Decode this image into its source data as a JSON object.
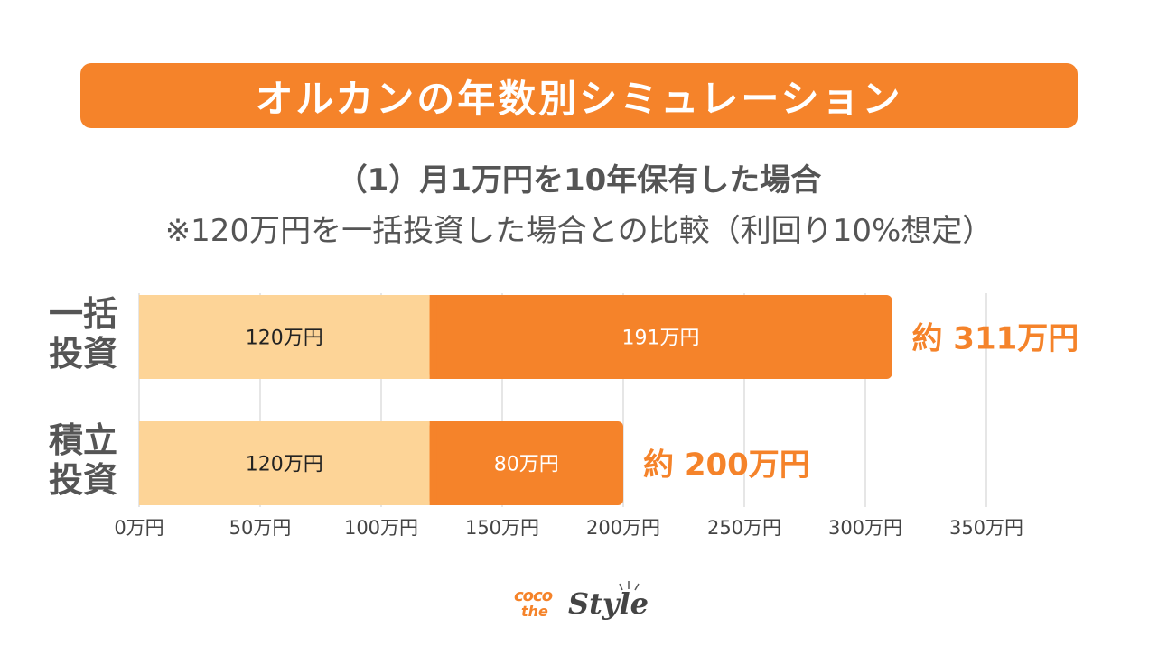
{
  "title": "オルカンの年数別シミュレーション",
  "subtitle": "（1）月1万円を10年保有した場合",
  "note": "※120万円を一括投資した場合との比較（利回り10%想定）",
  "colors": {
    "accent": "#f5832a",
    "principal": "#fdd497",
    "text": "#555555",
    "grid": "#dddddd"
  },
  "logo": {
    "coco": "coco",
    "the": "the",
    "style": "Style"
  },
  "chart_data": {
    "type": "bar",
    "orientation": "horizontal",
    "stacked": true,
    "categories": [
      "一括投資",
      "積立投資"
    ],
    "category_labels": [
      [
        "一括",
        "投資"
      ],
      [
        "積立",
        "投資"
      ]
    ],
    "series": [
      {
        "values": [
          120,
          120
        ],
        "labels": [
          "120万円",
          "120万円"
        ],
        "color": "#fdd497"
      },
      {
        "values": [
          191,
          80
        ],
        "labels": [
          "191万円",
          "80万円"
        ],
        "color": "#f5832a"
      }
    ],
    "totals": [
      311,
      200
    ],
    "total_labels": [
      "約 311万円",
      "約 200万円"
    ],
    "xlim": [
      0,
      350
    ],
    "xticks": [
      0,
      50,
      100,
      150,
      200,
      250,
      300,
      350
    ],
    "xtick_labels": [
      "0万円",
      "50万円",
      "100万円",
      "150万円",
      "200万円",
      "250万円",
      "300万円",
      "350万円"
    ],
    "grid": true
  }
}
